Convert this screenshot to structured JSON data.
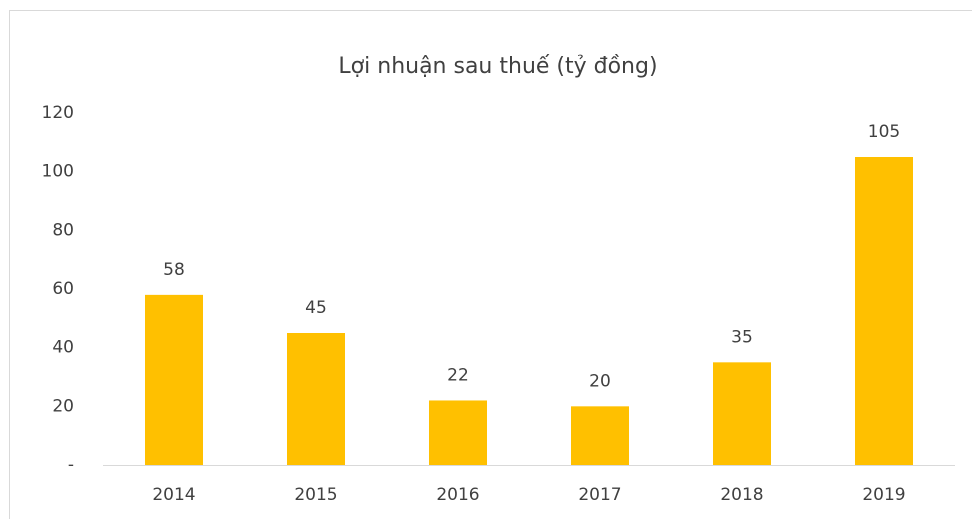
{
  "chart_data": {
    "type": "bar",
    "title": "Lợi nhuận sau thuế (tỷ đồng)",
    "categories": [
      "2014",
      "2015",
      "2016",
      "2017",
      "2018",
      "2019"
    ],
    "values": [
      58,
      45,
      22,
      20,
      35,
      105
    ],
    "color": "#ffc000",
    "ylim": [
      0,
      120
    ],
    "yticks": [
      {
        "value": 0,
        "label": "-"
      },
      20,
      40,
      60,
      80,
      100,
      120
    ],
    "grid": false
  }
}
